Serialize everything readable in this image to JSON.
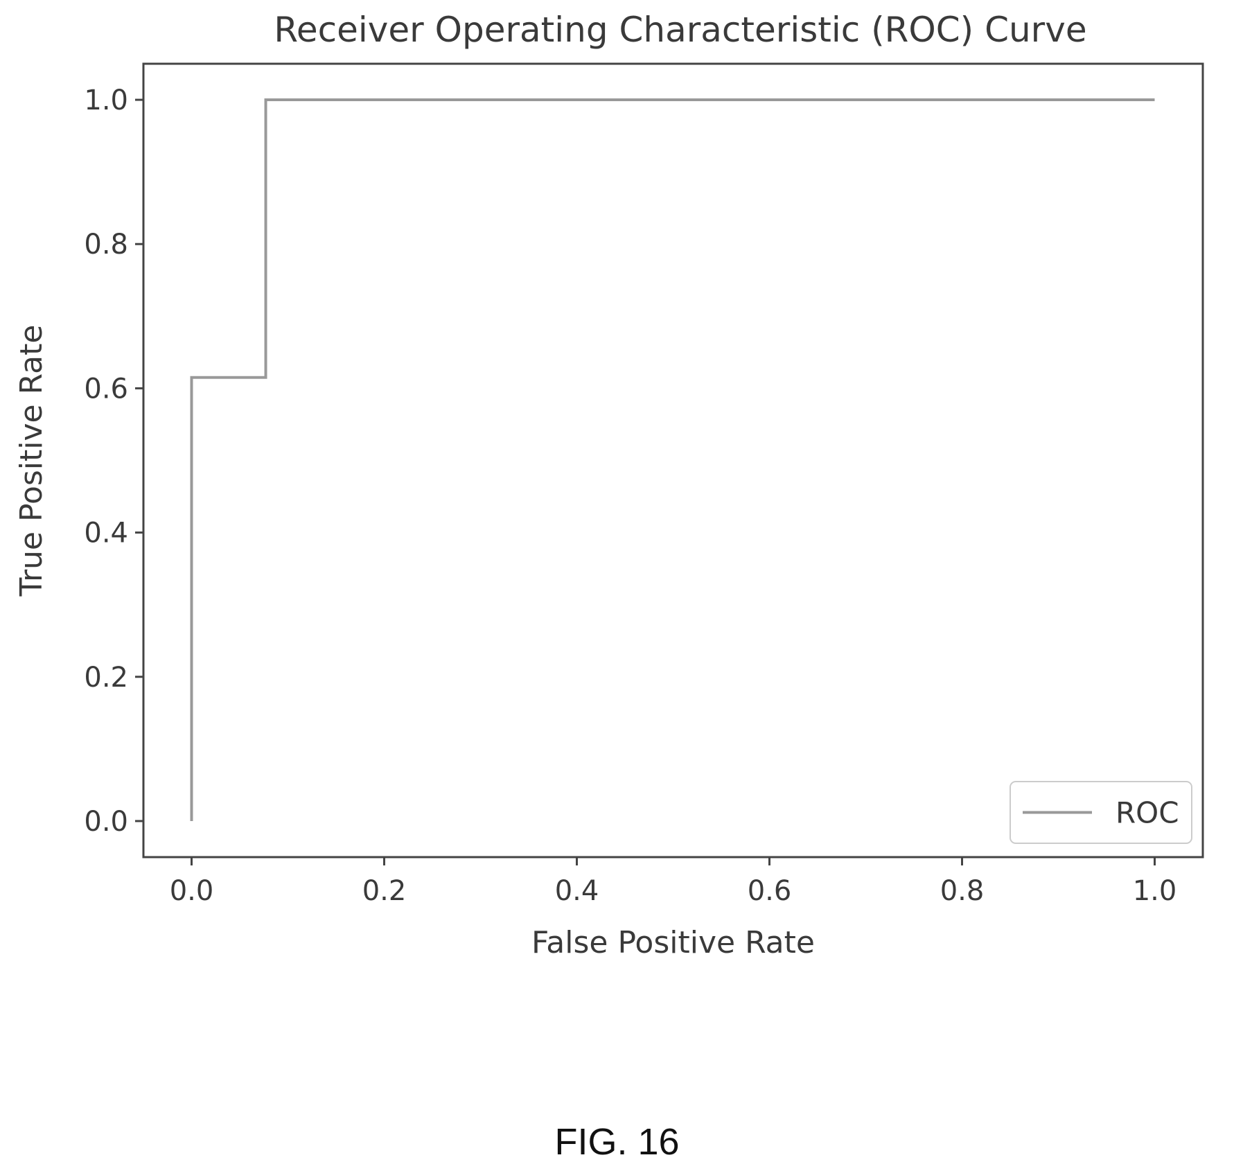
{
  "figure": {
    "caption": "FIG. 16"
  },
  "chart_data": {
    "type": "line",
    "title": "Receiver Operating Characteristic (ROC) Curve",
    "xlabel": "False Positive Rate",
    "ylabel": "True Positive Rate",
    "xlim": [
      -0.05,
      1.05
    ],
    "ylim": [
      -0.05,
      1.05
    ],
    "xticks": [
      0.0,
      0.2,
      0.4,
      0.6,
      0.8,
      1.0
    ],
    "yticks": [
      0.0,
      0.2,
      0.4,
      0.6,
      0.8,
      1.0
    ],
    "xtick_labels": [
      "0.0",
      "0.2",
      "0.4",
      "0.6",
      "0.8",
      "1.0"
    ],
    "ytick_labels": [
      "0.0",
      "0.2",
      "0.4",
      "0.6",
      "0.8",
      "1.0"
    ],
    "grid": false,
    "legend_position": "bottom-right",
    "series": [
      {
        "name": "ROC",
        "color": "#999999",
        "x": [
          0.0,
          0.0,
          0.077,
          0.077,
          1.0
        ],
        "y": [
          0.0,
          0.615,
          0.615,
          1.0,
          1.0
        ]
      }
    ]
  }
}
